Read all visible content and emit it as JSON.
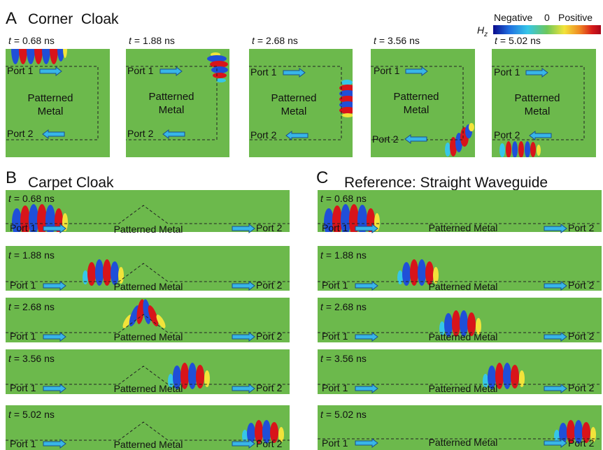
{
  "sections": [
    {
      "letter": "A",
      "title": "Corner  Cloak"
    },
    {
      "letter": "B",
      "title": "Carpet Cloak"
    },
    {
      "letter": "C",
      "title": "Reference: Straight Waveguide"
    }
  ],
  "colorbar": {
    "negative": "Negative",
    "zero": "0",
    "positive": "Positive",
    "symbol": "H",
    "subscript": "z",
    "stops": [
      "#0a0a8c",
      "#1f6fe0",
      "#36c6e8",
      "#6dc75a",
      "#f2e33a",
      "#f08a23",
      "#d61a1a",
      "#a8071a"
    ]
  },
  "t_prefix": "t",
  "times": [
    "= 0.68 ns",
    "= 1.88 ns",
    "= 2.68 ns",
    "= 3.56 ns",
    "= 5.02 ns"
  ],
  "labels": {
    "port1": "Port 1",
    "port2": "Port 2",
    "patterned": "Patterned",
    "metal": "Metal",
    "patterned_metal": "Patterned Metal"
  },
  "colors": {
    "field_bg": "#6cb94c",
    "arrow_fill": "#38b6e8",
    "arrow_stroke": "#1a4d8c",
    "red": "#d8141a",
    "blue": "#1f4fd8"
  }
}
